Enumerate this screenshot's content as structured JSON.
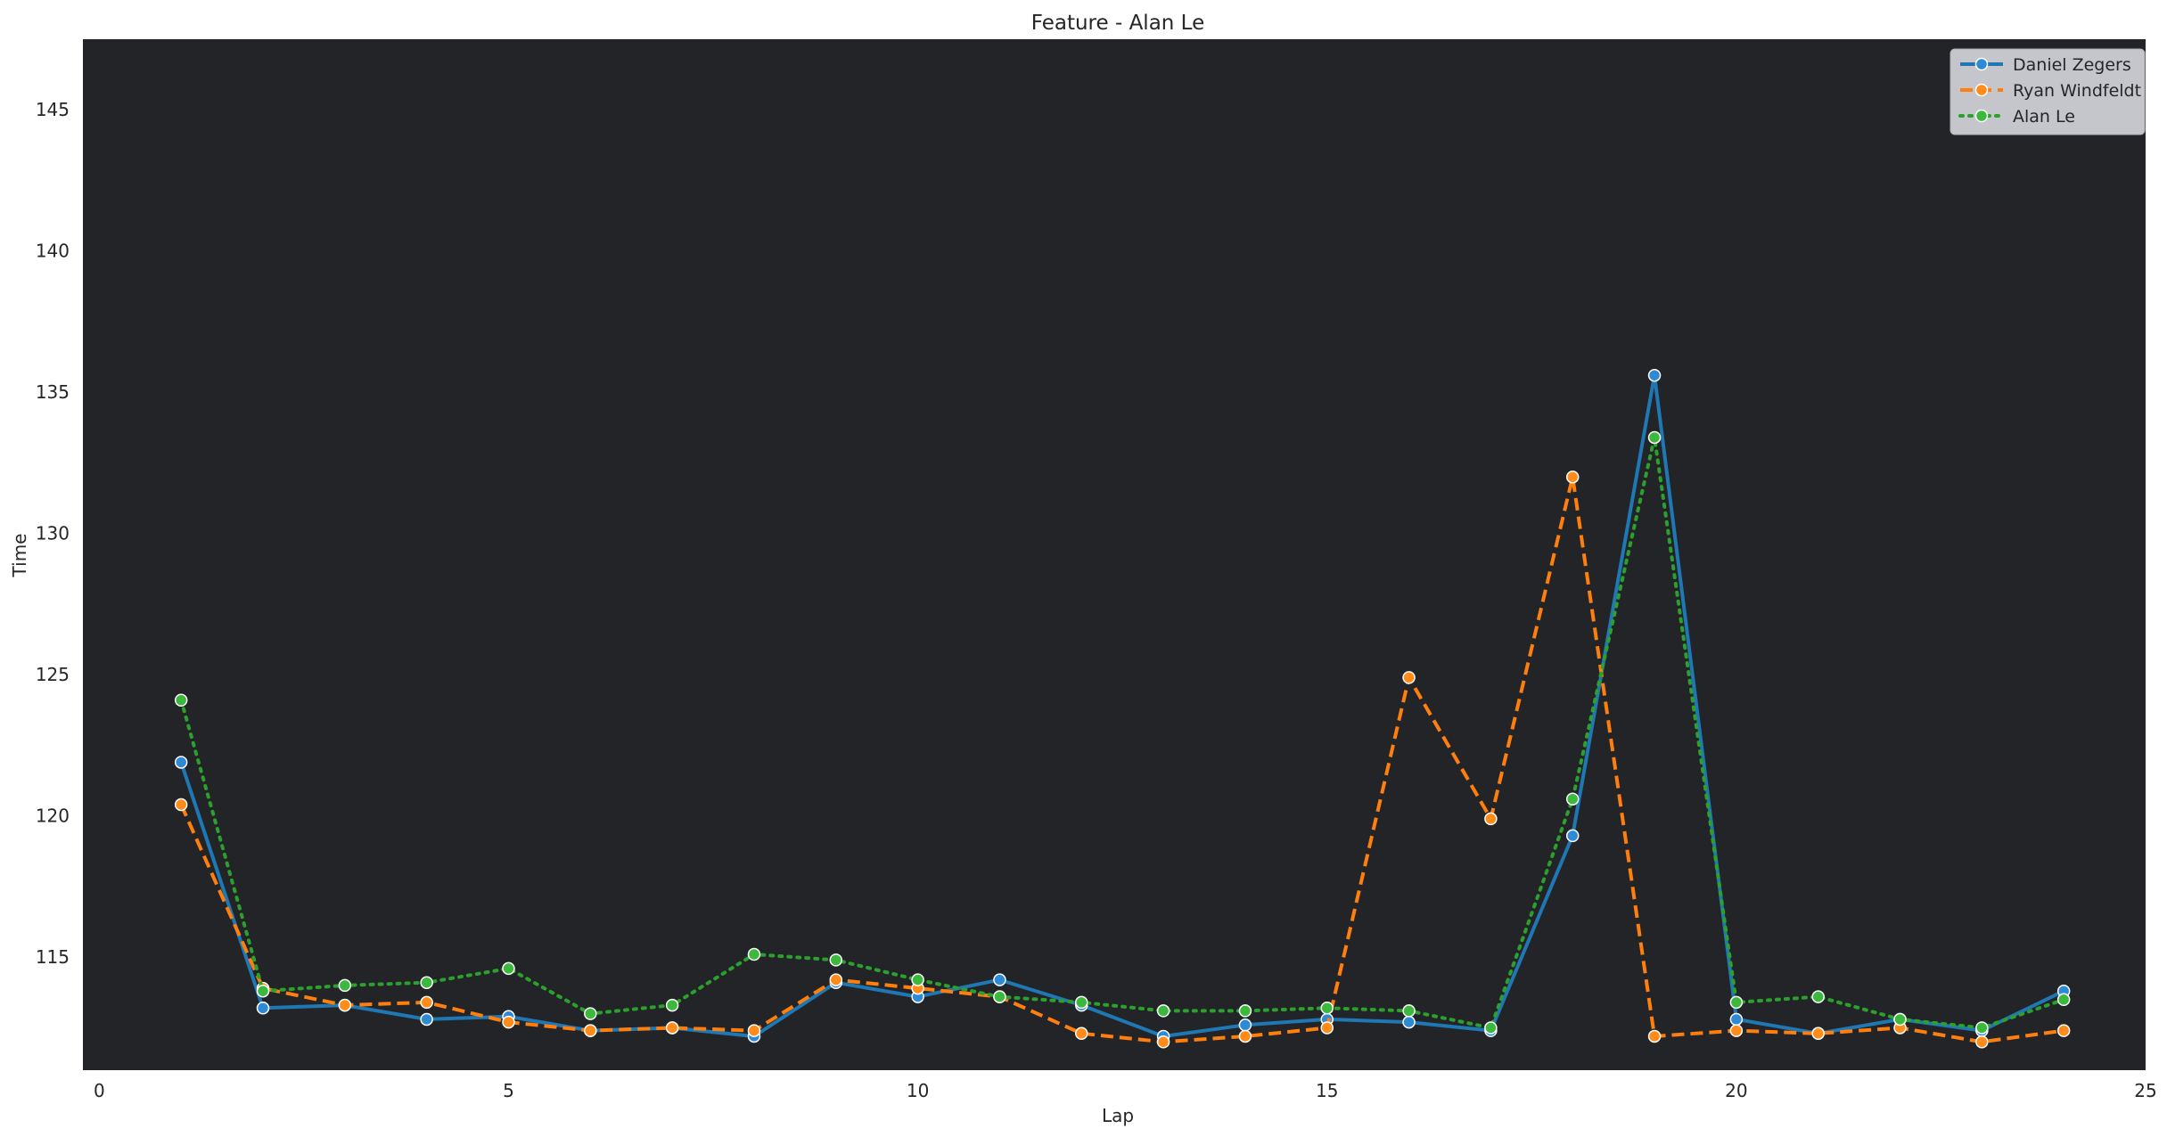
{
  "chart_data": {
    "type": "line",
    "title": "Feature - Alan Le",
    "xlabel": "Lap",
    "ylabel": "Time",
    "xlim": [
      -0.2,
      25
    ],
    "ylim": [
      111,
      147.5
    ],
    "xticks": [
      0,
      5,
      10,
      15,
      20,
      25
    ],
    "yticks": [
      115,
      120,
      125,
      130,
      135,
      140,
      145
    ],
    "grid": false,
    "legend_position": "top-right",
    "plot_background": "#222428",
    "x": [
      1,
      2,
      3,
      4,
      5,
      6,
      7,
      8,
      9,
      10,
      11,
      12,
      13,
      14,
      15,
      16,
      17,
      18,
      19,
      20,
      21,
      22,
      23,
      24
    ],
    "series": [
      {
        "name": "Daniel Zegers",
        "color": "#1f77b4",
        "marker_color": "#2f8ad6",
        "dash": "solid",
        "values": [
          121.9,
          113.2,
          113.3,
          112.8,
          112.9,
          112.4,
          112.5,
          112.2,
          114.1,
          113.6,
          114.2,
          113.3,
          112.2,
          112.6,
          112.8,
          112.7,
          112.4,
          119.3,
          135.6,
          112.8,
          112.3,
          112.8,
          112.4,
          113.8
        ]
      },
      {
        "name": "Ryan Windfeldt",
        "color": "#ff7f0e",
        "marker_color": "#ff8c1a",
        "dash": "dashed",
        "values": [
          120.4,
          113.9,
          113.3,
          113.4,
          112.7,
          112.4,
          112.5,
          112.4,
          114.2,
          113.9,
          113.6,
          112.3,
          112.0,
          112.2,
          112.5,
          124.9,
          119.9,
          132.0,
          112.2,
          112.4,
          112.3,
          112.5,
          112.0,
          112.4
        ]
      },
      {
        "name": "Alan Le",
        "color": "#2ca02c",
        "marker_color": "#3cb83c",
        "dash": "dotted",
        "values": [
          124.1,
          113.8,
          114.0,
          114.1,
          114.6,
          113.0,
          113.3,
          115.1,
          114.9,
          114.2,
          113.6,
          113.4,
          113.1,
          113.1,
          113.2,
          113.1,
          112.5,
          120.6,
          133.4,
          113.4,
          113.6,
          112.8,
          112.5,
          113.5
        ]
      }
    ]
  }
}
